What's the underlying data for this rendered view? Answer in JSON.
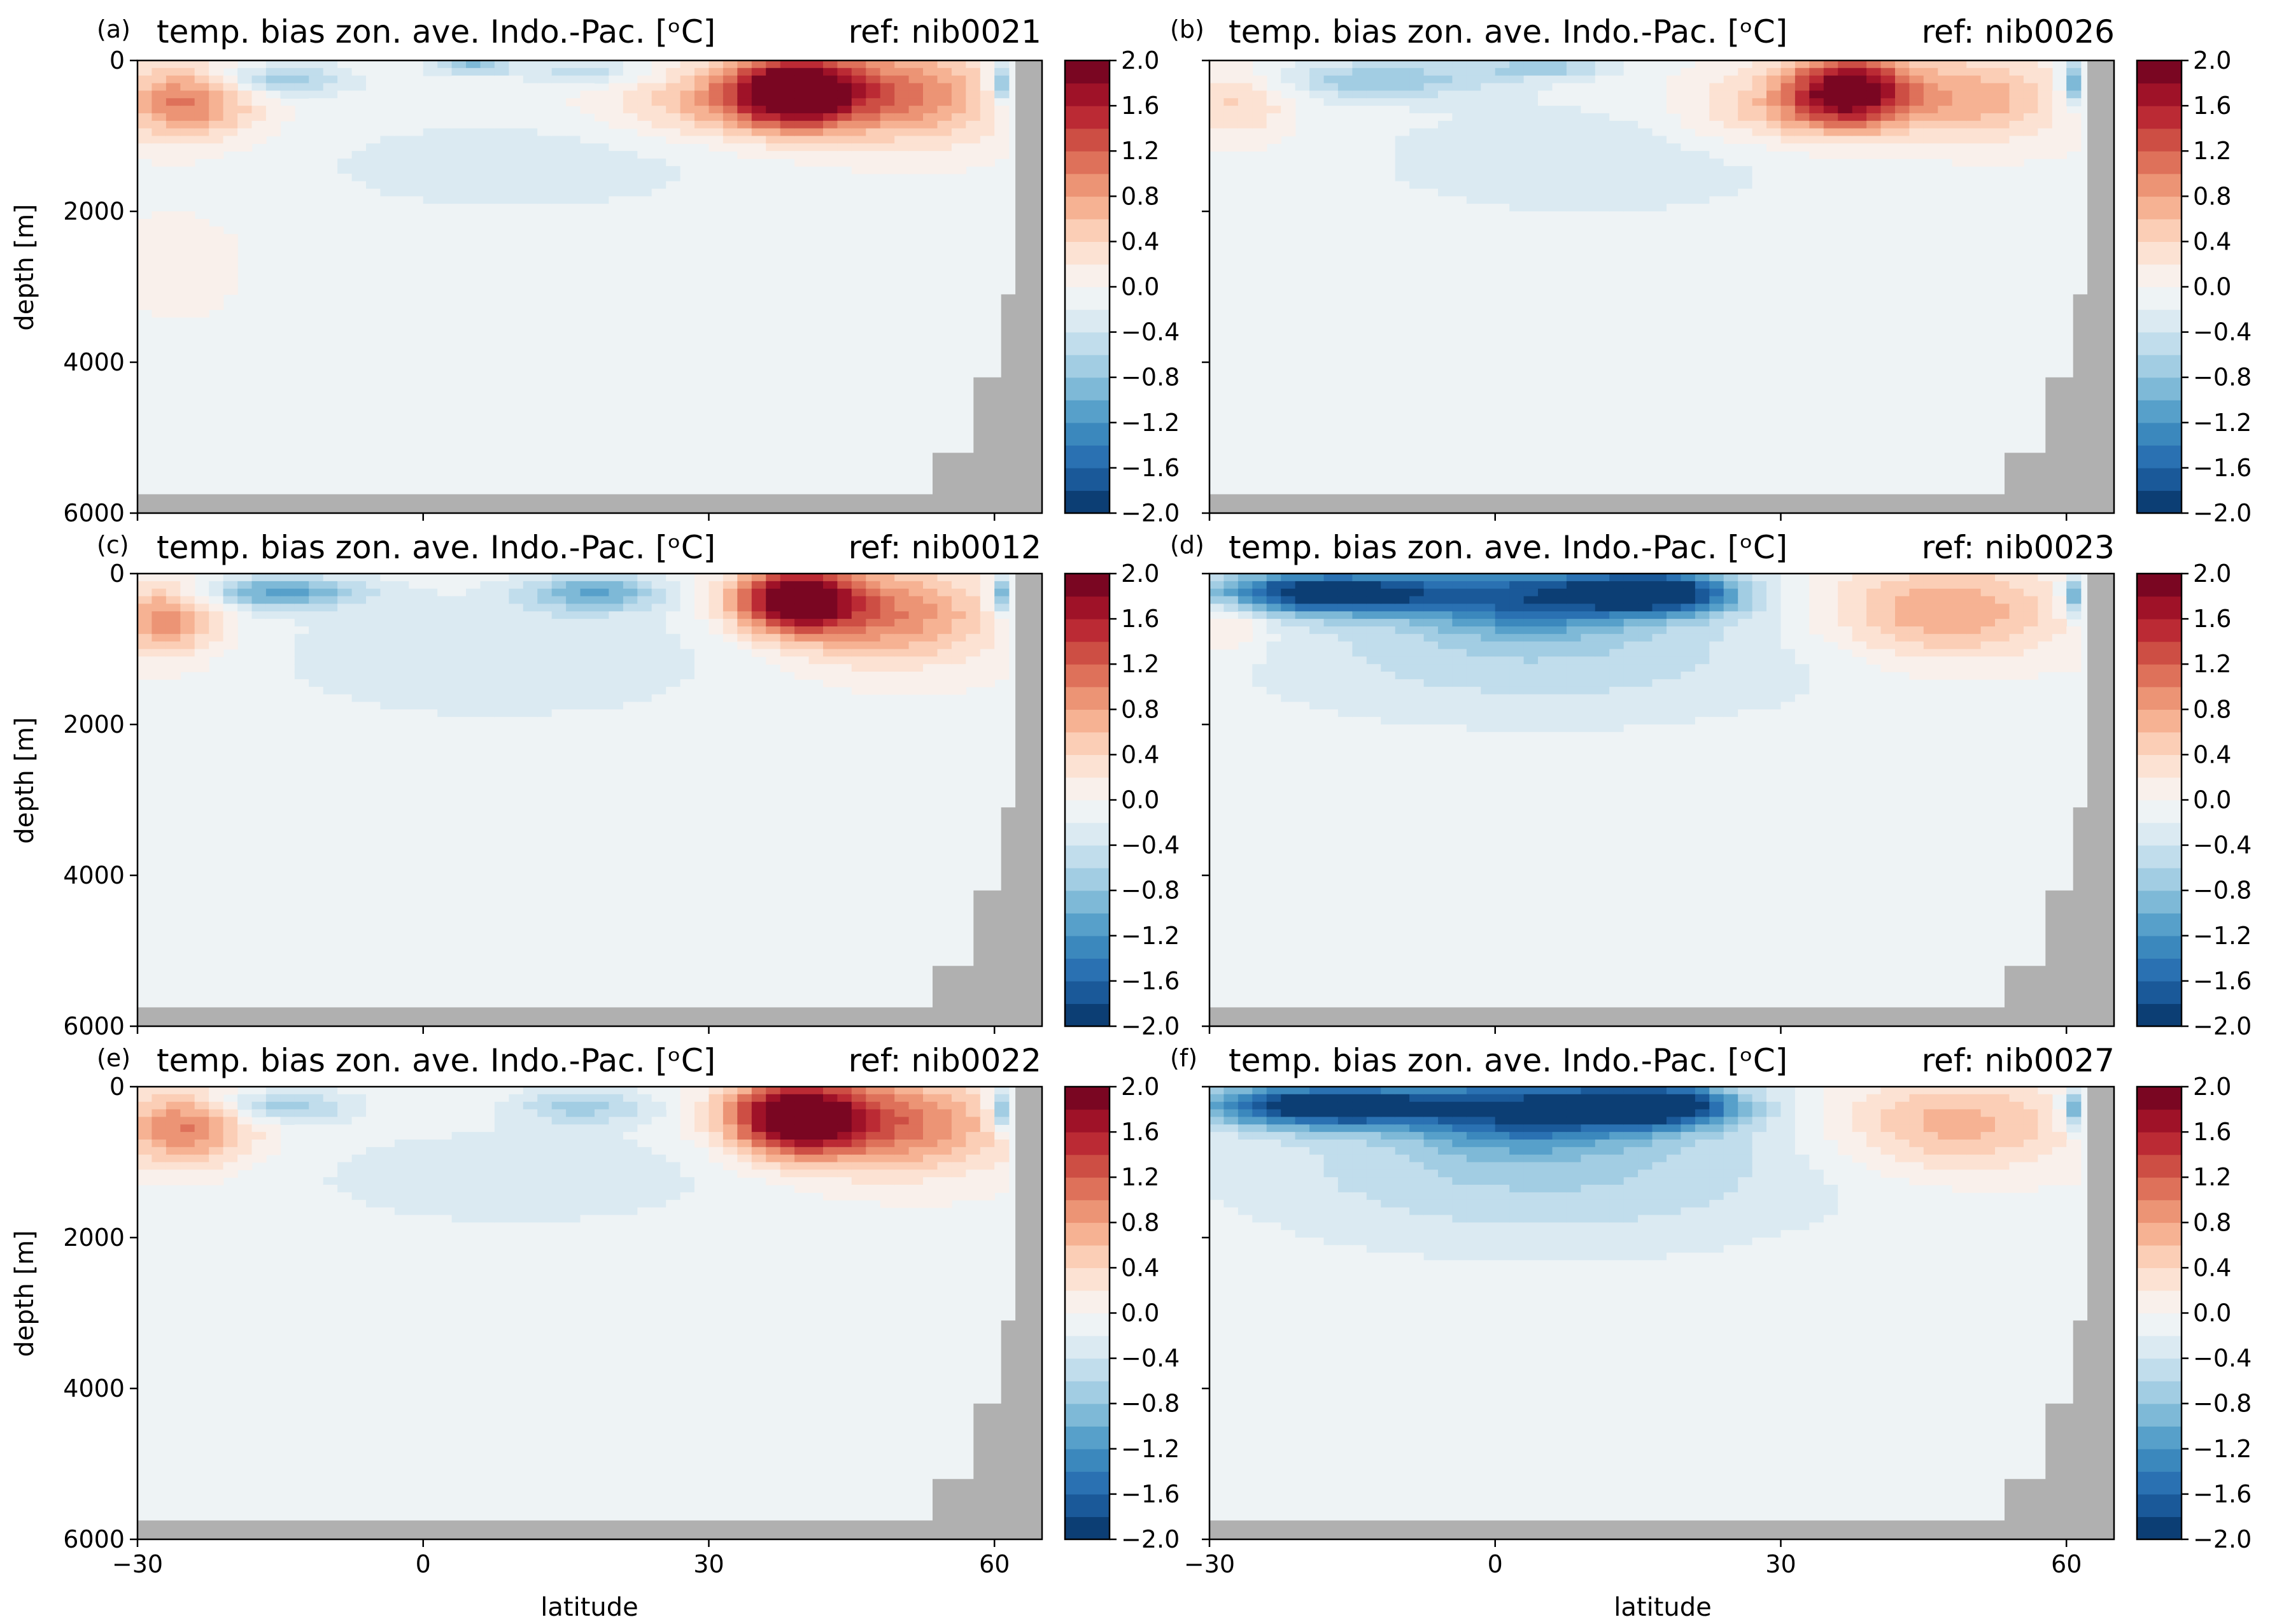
{
  "figure": {
    "xlabel": "latitude",
    "ylabel": "depth [m]",
    "panels": [
      {
        "letter": "(a)",
        "title": "temp. bias zon. ave. Indo.-Pac. [ᵒC]",
        "ref": "ref: nib0021"
      },
      {
        "letter": "(b)",
        "title": "temp. bias zon. ave. Indo.-Pac. [ᵒC]",
        "ref": "ref: nib0026"
      },
      {
        "letter": "(c)",
        "title": "temp. bias zon. ave. Indo.-Pac. [ᵒC]",
        "ref": "ref: nib0012"
      },
      {
        "letter": "(d)",
        "title": "temp. bias zon. ave. Indo.-Pac. [ᵒC]",
        "ref": "ref: nib0023"
      },
      {
        "letter": "(e)",
        "title": "temp. bias zon. ave. Indo.-Pac. [ᵒC]",
        "ref": "ref: nib0022"
      },
      {
        "letter": "(f)",
        "title": "temp. bias zon. ave. Indo.-Pac. [ᵒC]",
        "ref": "ref: nib0027"
      }
    ],
    "xticks": [
      "−30",
      "0",
      "30",
      "60"
    ],
    "yticks": [
      "0",
      "2000",
      "4000",
      "6000"
    ],
    "cbar_ticks": [
      "2.0",
      "1.6",
      "1.2",
      "0.8",
      "0.4",
      "0.0",
      "−0.4",
      "−0.8",
      "−1.2",
      "−1.6",
      "−2.0"
    ]
  },
  "chart_data": {
    "type": "heatmap",
    "colormap": "RdBu_r",
    "colorbar_range": [
      -2.0,
      2.0
    ],
    "colorbar_levels": 20,
    "xlim": [
      -30,
      65
    ],
    "ylim": [
      6000,
      0
    ],
    "x_tick_values": [
      -30,
      0,
      30,
      60
    ],
    "y_tick_values": [
      0,
      2000,
      4000,
      6000
    ],
    "land_color": "#b0b0b0",
    "panels": [
      {
        "id": "a",
        "ref": "nib0021",
        "blobs": [
          {
            "lat": 39,
            "depth": 400,
            "value": 2.2,
            "slat": 5,
            "sdep": 350
          },
          {
            "lat": 51,
            "depth": 450,
            "value": 1.0,
            "slat": 7,
            "sdep": 450
          },
          {
            "lat": 30,
            "depth": 550,
            "value": 0.6,
            "slat": 8,
            "sdep": 350
          },
          {
            "lat": -25,
            "depth": 550,
            "value": 1.1,
            "slat": 5,
            "sdep": 350
          },
          {
            "lat": -15,
            "depth": 250,
            "value": -0.7,
            "slat": 5,
            "sdep": 150
          },
          {
            "lat": 5,
            "depth": 80,
            "value": -0.8,
            "slat": 3,
            "sdep": 70
          },
          {
            "lat": 17,
            "depth": 150,
            "value": -0.5,
            "slat": 5,
            "sdep": 150
          },
          {
            "lat": 10,
            "depth": 1400,
            "value": -0.3,
            "slat": 16,
            "sdep": 450
          },
          {
            "lat": -26,
            "depth": 2700,
            "value": 0.25,
            "slat": 4,
            "sdep": 400
          },
          {
            "lat": 62,
            "depth": 300,
            "value": -1.5,
            "slat": 1.5,
            "sdep": 200
          }
        ]
      },
      {
        "id": "b",
        "ref": "nib0026",
        "blobs": [
          {
            "lat": 37,
            "depth": 400,
            "value": 2.0,
            "slat": 4.5,
            "sdep": 350
          },
          {
            "lat": 50,
            "depth": 500,
            "value": 0.8,
            "slat": 7,
            "sdep": 400
          },
          {
            "lat": 28,
            "depth": 650,
            "value": 0.55,
            "slat": 7,
            "sdep": 350
          },
          {
            "lat": -27,
            "depth": 550,
            "value": 0.5,
            "slat": 4,
            "sdep": 350
          },
          {
            "lat": -12,
            "depth": 250,
            "value": -0.7,
            "slat": 8,
            "sdep": 180
          },
          {
            "lat": 5,
            "depth": 100,
            "value": -0.6,
            "slat": 5,
            "sdep": 100
          },
          {
            "lat": 10,
            "depth": 1300,
            "value": -0.3,
            "slat": 18,
            "sdep": 600
          },
          {
            "lat": 62,
            "depth": 300,
            "value": -1.5,
            "slat": 1.5,
            "sdep": 200
          }
        ]
      },
      {
        "id": "c",
        "ref": "nib0012",
        "blobs": [
          {
            "lat": 39,
            "depth": 350,
            "value": 2.1,
            "slat": 4.5,
            "sdep": 300
          },
          {
            "lat": 49,
            "depth": 550,
            "value": 1.0,
            "slat": 8,
            "sdep": 450
          },
          {
            "lat": -27,
            "depth": 600,
            "value": 1.0,
            "slat": 4,
            "sdep": 350
          },
          {
            "lat": -15,
            "depth": 250,
            "value": -1.0,
            "slat": 6,
            "sdep": 150
          },
          {
            "lat": 18,
            "depth": 250,
            "value": -0.9,
            "slat": 5,
            "sdep": 170
          },
          {
            "lat": 8,
            "depth": 1100,
            "value": -0.35,
            "slat": 17,
            "sdep": 600
          },
          {
            "lat": 62,
            "depth": 300,
            "value": -1.5,
            "slat": 1.5,
            "sdep": 200
          }
        ]
      },
      {
        "id": "d",
        "ref": "nib0023",
        "blobs": [
          {
            "lat": -18,
            "depth": 250,
            "value": -2.0,
            "slat": 9,
            "sdep": 200
          },
          {
            "lat": 17,
            "depth": 250,
            "value": -2.0,
            "slat": 6,
            "sdep": 200
          },
          {
            "lat": 3,
            "depth": 300,
            "value": -1.2,
            "slat": 8,
            "sdep": 350
          },
          {
            "lat": 5,
            "depth": 1000,
            "value": -0.5,
            "slat": 22,
            "sdep": 700
          },
          {
            "lat": 47,
            "depth": 500,
            "value": 0.9,
            "slat": 9,
            "sdep": 450
          },
          {
            "lat": -28,
            "depth": 600,
            "value": 0.5,
            "slat": 3,
            "sdep": 300
          },
          {
            "lat": 62,
            "depth": 300,
            "value": -1.5,
            "slat": 1.5,
            "sdep": 200
          }
        ]
      },
      {
        "id": "e",
        "ref": "nib0022",
        "blobs": [
          {
            "lat": 39,
            "depth": 400,
            "value": 2.2,
            "slat": 5,
            "sdep": 350
          },
          {
            "lat": 50,
            "depth": 500,
            "value": 1.1,
            "slat": 8,
            "sdep": 450
          },
          {
            "lat": -25,
            "depth": 550,
            "value": 1.1,
            "slat": 5,
            "sdep": 350
          },
          {
            "lat": -15,
            "depth": 250,
            "value": -0.7,
            "slat": 5,
            "sdep": 150
          },
          {
            "lat": 17,
            "depth": 250,
            "value": -0.6,
            "slat": 5,
            "sdep": 170
          },
          {
            "lat": 10,
            "depth": 1200,
            "value": -0.3,
            "slat": 17,
            "sdep": 500
          },
          {
            "lat": 62,
            "depth": 300,
            "value": -1.5,
            "slat": 1.5,
            "sdep": 200
          }
        ]
      },
      {
        "id": "f",
        "ref": "nib0027",
        "blobs": [
          {
            "lat": -18,
            "depth": 250,
            "value": -2.0,
            "slat": 9,
            "sdep": 200
          },
          {
            "lat": 17,
            "depth": 250,
            "value": -2.0,
            "slat": 6,
            "sdep": 200
          },
          {
            "lat": 3,
            "depth": 300,
            "value": -1.3,
            "slat": 8,
            "sdep": 350
          },
          {
            "lat": 5,
            "depth": 1000,
            "value": -0.6,
            "slat": 22,
            "sdep": 800
          },
          {
            "lat": 48,
            "depth": 500,
            "value": 0.8,
            "slat": 9,
            "sdep": 450
          },
          {
            "lat": 62,
            "depth": 300,
            "value": -1.5,
            "slat": 1.5,
            "sdep": 200
          }
        ]
      }
    ]
  }
}
